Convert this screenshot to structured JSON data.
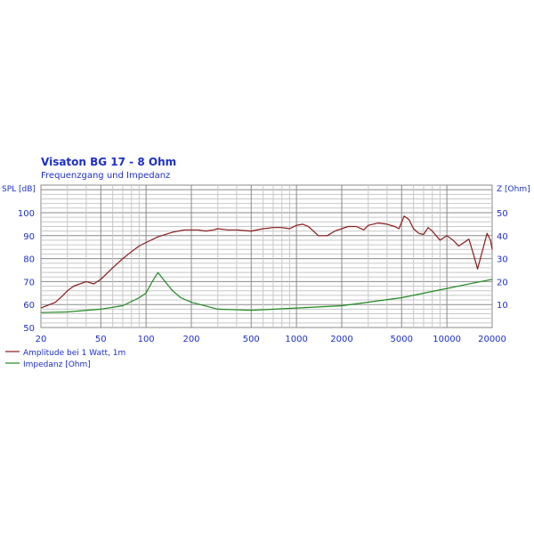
{
  "chart_data": {
    "type": "line",
    "title": "Visaton BG 17 - 8 Ohm",
    "subtitle": "Frequenzgang und Impedanz",
    "ylabel": "SPL [dB]",
    "y2label": "Z [Ohm]",
    "xscale": "log",
    "xlim": [
      20,
      20000
    ],
    "ylim": [
      50,
      112
    ],
    "y2lim": [
      0,
      62
    ],
    "xticks": [
      20,
      50,
      100,
      200,
      500,
      1000,
      2000,
      5000,
      10000,
      20000
    ],
    "xtick_labels": [
      "20",
      "50",
      "100",
      "200",
      "500",
      "1000",
      "2000",
      "5000",
      "10000",
      "20000"
    ],
    "yticks": [
      50,
      60,
      70,
      80,
      90,
      100
    ],
    "y2ticks": [
      10,
      20,
      30,
      40,
      50
    ],
    "grid": true,
    "legend_placement": "bottom-left",
    "colors": {
      "text": "#1c2fc8",
      "spl": "#8b1a1a",
      "impedance": "#1f8a1f",
      "grid": "#c8c8c8",
      "grid_major": "#8a8a8a"
    },
    "series": [
      {
        "name": "Amplitude bei 1 Watt, 1m",
        "axis": "left",
        "x": [
          20,
          25,
          28,
          30,
          33,
          40,
          45,
          50,
          60,
          70,
          80,
          90,
          100,
          120,
          150,
          180,
          220,
          250,
          280,
          300,
          350,
          400,
          500,
          600,
          700,
          800,
          900,
          1000,
          1100,
          1200,
          1400,
          1600,
          1800,
          2000,
          2200,
          2500,
          2800,
          3000,
          3500,
          4000,
          4500,
          4800,
          5200,
          5600,
          6000,
          6500,
          7000,
          7500,
          8000,
          9000,
          10000,
          11000,
          12000,
          13000,
          14000,
          15000,
          16000,
          17000,
          18500,
          19500,
          20000
        ],
        "y": [
          58.5,
          61,
          64,
          66,
          68,
          70,
          69,
          71,
          76,
          80,
          83,
          85.5,
          87,
          89.5,
          91.5,
          92.5,
          92.5,
          92,
          92.5,
          93,
          92.5,
          92.5,
          92,
          93,
          93.5,
          93.5,
          93,
          94.5,
          95,
          94,
          90,
          90,
          92,
          93,
          94,
          94,
          92.5,
          94.5,
          95.5,
          95,
          94,
          93,
          98.5,
          97,
          93,
          91,
          90.5,
          93.5,
          92,
          88,
          90,
          88,
          85.5,
          87,
          88.5,
          82,
          75.5,
          82,
          91,
          88,
          84
        ]
      },
      {
        "name": "Impedanz [Ohm]",
        "axis": "right",
        "x": [
          20,
          30,
          50,
          70,
          90,
          100,
          110,
          120,
          130,
          150,
          170,
          200,
          300,
          500,
          1000,
          2000,
          5000,
          10000,
          20000
        ],
        "y": [
          6.5,
          6.8,
          8,
          9.5,
          13,
          15,
          20,
          24,
          21,
          16,
          13,
          11,
          8,
          7.5,
          8.5,
          9.5,
          13,
          17,
          21
        ]
      }
    ]
  }
}
